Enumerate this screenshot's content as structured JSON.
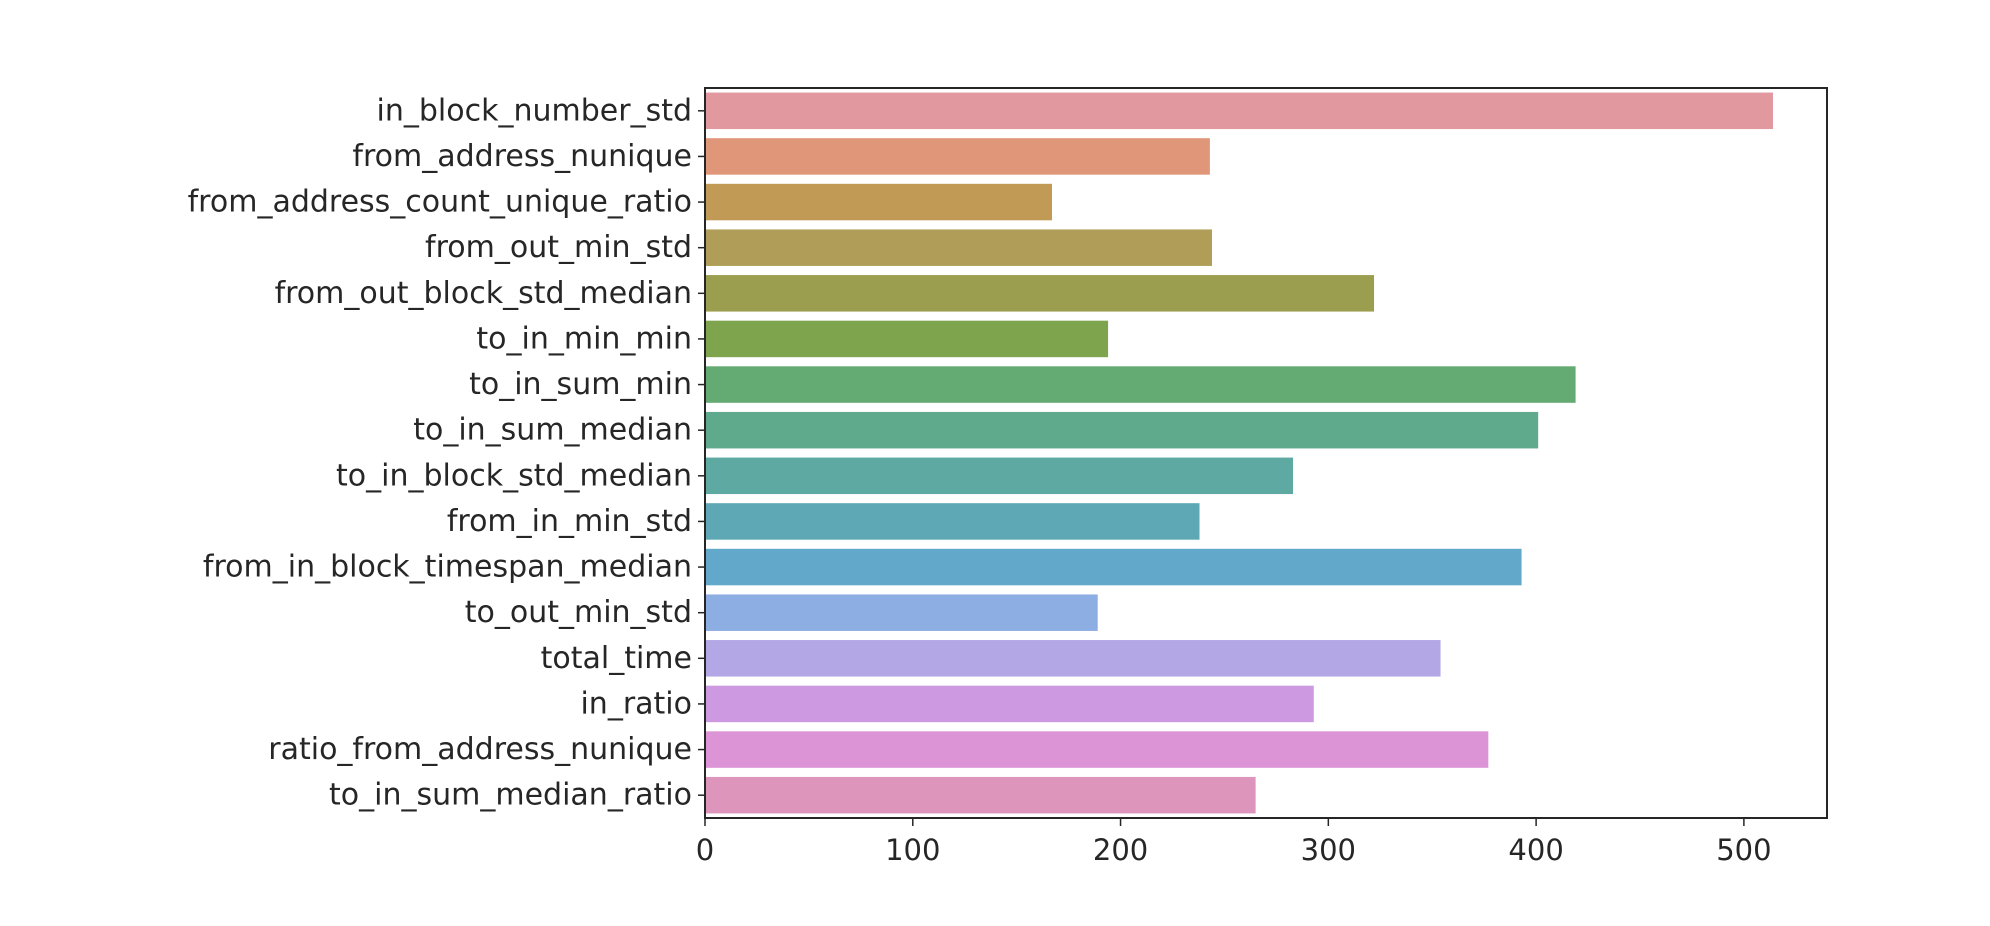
{
  "chart_data": {
    "type": "bar",
    "orientation": "horizontal",
    "title": "",
    "xlabel": "",
    "ylabel": "",
    "xlim": [
      0,
      540
    ],
    "grid": false,
    "legend": "none",
    "x_ticks": [
      0,
      100,
      200,
      300,
      400,
      500
    ],
    "x_tick_labels": [
      "0",
      "100",
      "200",
      "300",
      "400",
      "500"
    ],
    "categories": [
      "in_block_number_std",
      "from_address_nunique",
      "from_address_count_unique_ratio",
      "from_out_min_std",
      "from_out_block_std_median",
      "to_in_min_min",
      "to_in_sum_min",
      "to_in_sum_median",
      "to_in_block_std_median",
      "from_in_min_std",
      "from_in_block_timespan_median",
      "to_out_min_std",
      "total_time",
      "in_ratio",
      "ratio_from_address_nunique",
      "to_in_sum_median_ratio"
    ],
    "values": [
      514,
      243,
      167,
      244,
      322,
      194,
      419,
      401,
      283,
      238,
      393,
      189,
      354,
      293,
      377,
      265
    ],
    "colors": [
      "#e1989f",
      "#e09779",
      "#c19a55",
      "#b09e58",
      "#9b9e4f",
      "#7ea54d",
      "#64aa73",
      "#5faa8c",
      "#5ea9a2",
      "#5ea8b6",
      "#62a8ca",
      "#8daee3",
      "#b3a7e6",
      "#cd9ae2",
      "#dc94d6",
      "#de95bc"
    ]
  }
}
